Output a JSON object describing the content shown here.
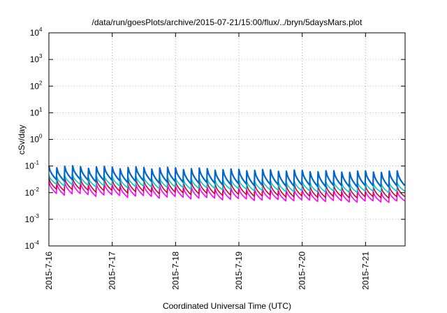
{
  "chart_data": {
    "type": "line",
    "title": "/data/run/goesPlots/archive/2015-07-21/15:00/flux/../bryn/5daysMars.plot",
    "xlabel": "Coordinated Universal Time (UTC)",
    "ylabel": "cSv/day",
    "y_scale": "log",
    "ylim": [
      0.0001,
      10000
    ],
    "y_ticks": [
      {
        "base": "10",
        "exp": "-4",
        "value": 0.0001
      },
      {
        "base": "10",
        "exp": "-3",
        "value": 0.001
      },
      {
        "base": "10",
        "exp": "-2",
        "value": 0.01
      },
      {
        "base": "10",
        "exp": "-1",
        "value": 0.1
      },
      {
        "base": "10",
        "exp": "0",
        "value": 1
      },
      {
        "base": "10",
        "exp": "1",
        "value": 10
      },
      {
        "base": "10",
        "exp": "2",
        "value": 100
      },
      {
        "base": "10",
        "exp": "3",
        "value": 1000
      },
      {
        "base": "10",
        "exp": "4",
        "value": 10000
      }
    ],
    "xlim": [
      "2015-07-16T00:00",
      "2015-07-21T15:00"
    ],
    "x_ticks": [
      "2015-7-16",
      "2015-7-17",
      "2015-7-18",
      "2015-7-19",
      "2015-7-20",
      "2015-7-21"
    ],
    "grid": true,
    "sawtooth_period_hours": 3,
    "series": [
      {
        "color": "#ff00ff",
        "peak_values": [
          0.025,
          0.02,
          0.018,
          0.014,
          0.012,
          0.011,
          0.01
        ],
        "trough_values": [
          0.009,
          0.0075,
          0.0065,
          0.0055,
          0.005,
          0.0045,
          0.0045
        ]
      },
      {
        "color": "#cc0033",
        "peak_values": [
          0.035,
          0.03,
          0.027,
          0.022,
          0.019,
          0.017,
          0.016
        ],
        "trough_values": [
          0.013,
          0.011,
          0.0095,
          0.008,
          0.007,
          0.0065,
          0.0065
        ]
      },
      {
        "color": "#00c8c8",
        "peak_values": [
          0.045,
          0.04,
          0.036,
          0.03,
          0.026,
          0.023,
          0.022
        ],
        "trough_values": [
          0.02,
          0.017,
          0.015,
          0.013,
          0.011,
          0.0105,
          0.0105
        ]
      },
      {
        "color": "#0066cc",
        "peak_values": [
          0.095,
          0.088,
          0.082,
          0.072,
          0.065,
          0.06,
          0.06
        ],
        "trough_values": [
          0.03,
          0.027,
          0.024,
          0.02,
          0.018,
          0.017,
          0.017
        ]
      }
    ]
  }
}
